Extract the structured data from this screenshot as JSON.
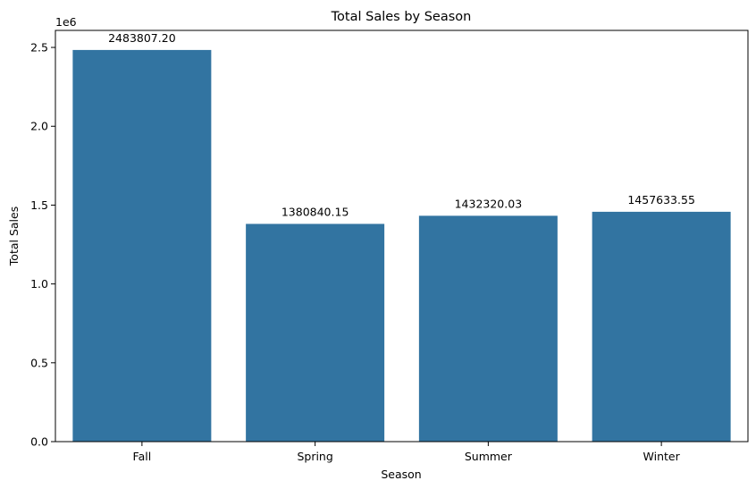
{
  "chart_data": {
    "type": "bar",
    "title": "Total Sales by Season",
    "xlabel": "Season",
    "ylabel": "Total Sales",
    "y_scale_note": "1e6",
    "categories": [
      "Fall",
      "Spring",
      "Summer",
      "Winter"
    ],
    "values": [
      2483807.2,
      1380840.15,
      1432320.03,
      1457633.55
    ],
    "data_labels": [
      "2483807.20",
      "1380840.15",
      "1432320.03",
      "1457633.55"
    ],
    "ylim": [
      0,
      2608000
    ],
    "yticks": [
      0,
      500000,
      1000000,
      1500000,
      2000000,
      2500000
    ],
    "ytick_labels": [
      "0.0",
      "0.5",
      "1.0",
      "1.5",
      "2.0",
      "2.5"
    ],
    "grid": false,
    "bar_color": "#3274a1"
  }
}
